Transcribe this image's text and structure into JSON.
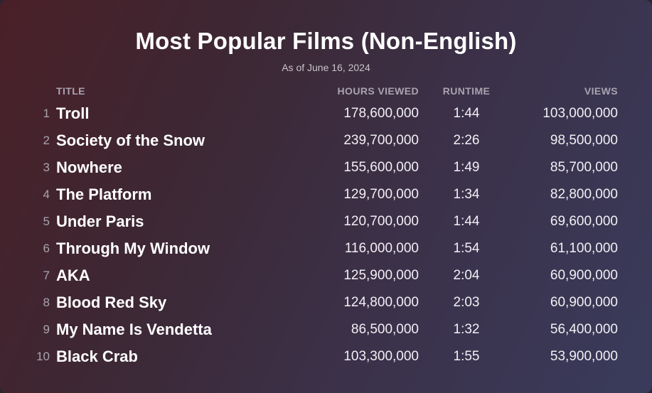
{
  "chart_data": {
    "type": "table",
    "title": "Most Popular Films (Non-English)",
    "subtitle": "As of June 16, 2024",
    "columns": {
      "title": "TITLE",
      "hours_viewed": "HOURS VIEWED",
      "runtime": "RUNTIME",
      "views": "VIEWS"
    },
    "rows": [
      {
        "rank": "1",
        "title": "Troll",
        "hours_viewed": "178,600,000",
        "runtime": "1:44",
        "views": "103,000,000"
      },
      {
        "rank": "2",
        "title": "Society of the Snow",
        "hours_viewed": "239,700,000",
        "runtime": "2:26",
        "views": "98,500,000"
      },
      {
        "rank": "3",
        "title": "Nowhere",
        "hours_viewed": "155,600,000",
        "runtime": "1:49",
        "views": "85,700,000"
      },
      {
        "rank": "4",
        "title": "The Platform",
        "hours_viewed": "129,700,000",
        "runtime": "1:34",
        "views": "82,800,000"
      },
      {
        "rank": "5",
        "title": "Under Paris",
        "hours_viewed": "120,700,000",
        "runtime": "1:44",
        "views": "69,600,000"
      },
      {
        "rank": "6",
        "title": "Through My Window",
        "hours_viewed": "116,000,000",
        "runtime": "1:54",
        "views": "61,100,000"
      },
      {
        "rank": "7",
        "title": "AKA",
        "hours_viewed": "125,900,000",
        "runtime": "2:04",
        "views": "60,900,000"
      },
      {
        "rank": "8",
        "title": "Blood Red Sky",
        "hours_viewed": "124,800,000",
        "runtime": "2:03",
        "views": "60,900,000"
      },
      {
        "rank": "9",
        "title": "My Name Is Vendetta",
        "hours_viewed": "86,500,000",
        "runtime": "1:32",
        "views": "56,400,000"
      },
      {
        "rank": "10",
        "title": "Black Crab",
        "hours_viewed": "103,300,000",
        "runtime": "1:55",
        "views": "53,900,000"
      }
    ]
  },
  "colors": {
    "background_start": "#4a2028",
    "background_end": "#3a3b5c",
    "header_text": "#a9a3b0",
    "body_text": "#ffffff"
  }
}
